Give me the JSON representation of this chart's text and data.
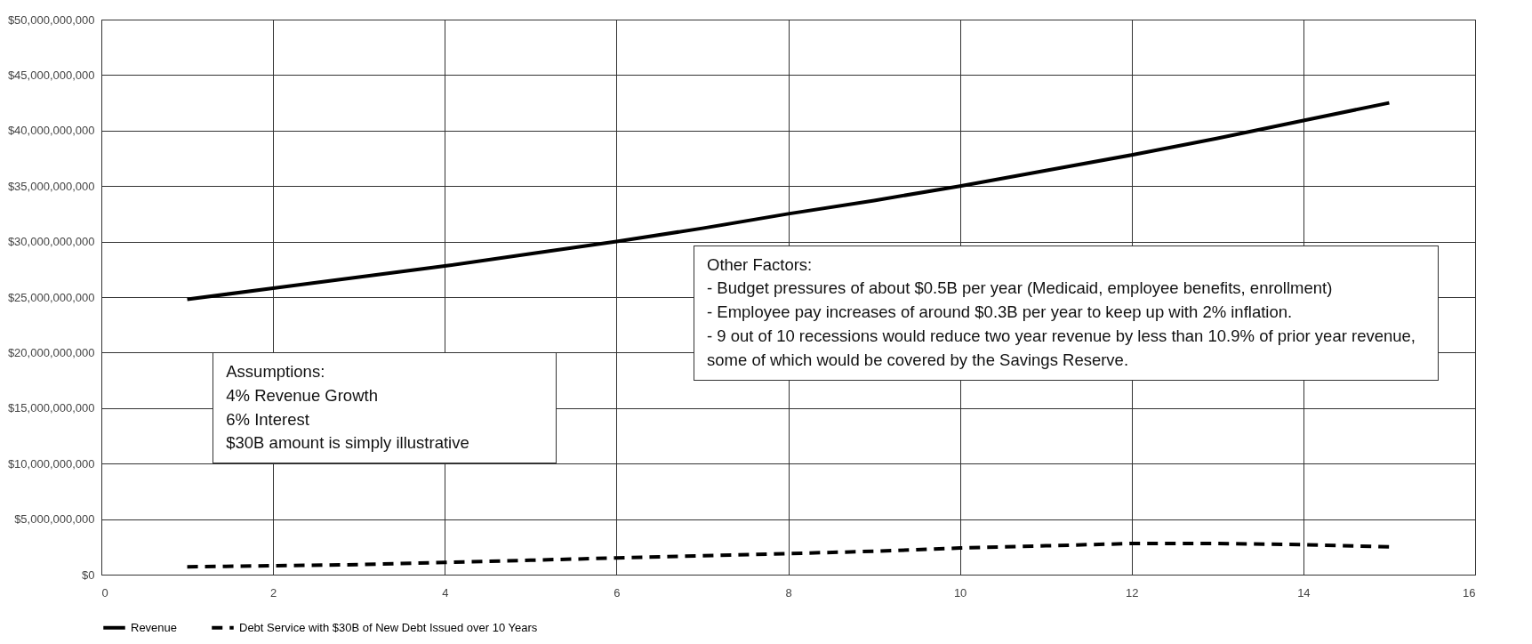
{
  "chart_data": {
    "type": "line",
    "xlim": [
      0,
      16
    ],
    "xticks": [
      0,
      2,
      4,
      6,
      8,
      10,
      12,
      14,
      16
    ],
    "ylim": [
      0,
      50000000000
    ],
    "yticks": [
      {
        "value": 0,
        "label": "$0"
      },
      {
        "value": 5000000000,
        "label": "$5,000,000,000"
      },
      {
        "value": 10000000000,
        "label": "$10,000,000,000"
      },
      {
        "value": 15000000000,
        "label": "$15,000,000,000"
      },
      {
        "value": 20000000000,
        "label": "$20,000,000,000"
      },
      {
        "value": 25000000000,
        "label": "$25,000,000,000"
      },
      {
        "value": 30000000000,
        "label": "$30,000,000,000"
      },
      {
        "value": 35000000000,
        "label": "$35,000,000,000"
      },
      {
        "value": 40000000000,
        "label": "$40,000,000,000"
      },
      {
        "value": 45000000000,
        "label": "$45,000,000,000"
      },
      {
        "value": 50000000000,
        "label": "$50,000,000,000"
      }
    ],
    "x": [
      1,
      2,
      3,
      4,
      5,
      6,
      7,
      8,
      9,
      10,
      11,
      12,
      13,
      14,
      15
    ],
    "series": [
      {
        "name": "Revenue",
        "color": "#000000",
        "line_style": "solid",
        "values": [
          24800000000,
          25800000000,
          26800000000,
          27800000000,
          28900000000,
          30000000000,
          31200000000,
          32500000000,
          33700000000,
          35000000000,
          36400000000,
          37800000000,
          39300000000,
          40900000000,
          42500000000
        ]
      },
      {
        "name": "Debt Service with $30B of New Debt Issued over 10 Years",
        "color": "#000000",
        "line_style": "dashed",
        "values": [
          700000000,
          800000000,
          900000000,
          1100000000,
          1300000000,
          1500000000,
          1700000000,
          1900000000,
          2100000000,
          2400000000,
          2600000000,
          2800000000,
          2800000000,
          2700000000,
          2500000000
        ]
      }
    ],
    "grid": true,
    "legend": "bottom",
    "marker": "none",
    "annotations": [
      "Assumptions:\n4% Revenue Growth\n6% Interest\n$30B amount is simply illustrative",
      "Other Factors:\n- Budget pressures of about $0.5B per year (Medicaid, employee benefits, enrollment)\n- Employee pay increases of around $0.3B per year to keep up with 2% inflation.\n- 9 out of 10 recessions would reduce two year revenue by less than 10.9% of prior year revenue, some of which would be covered by the Savings Reserve."
    ]
  }
}
